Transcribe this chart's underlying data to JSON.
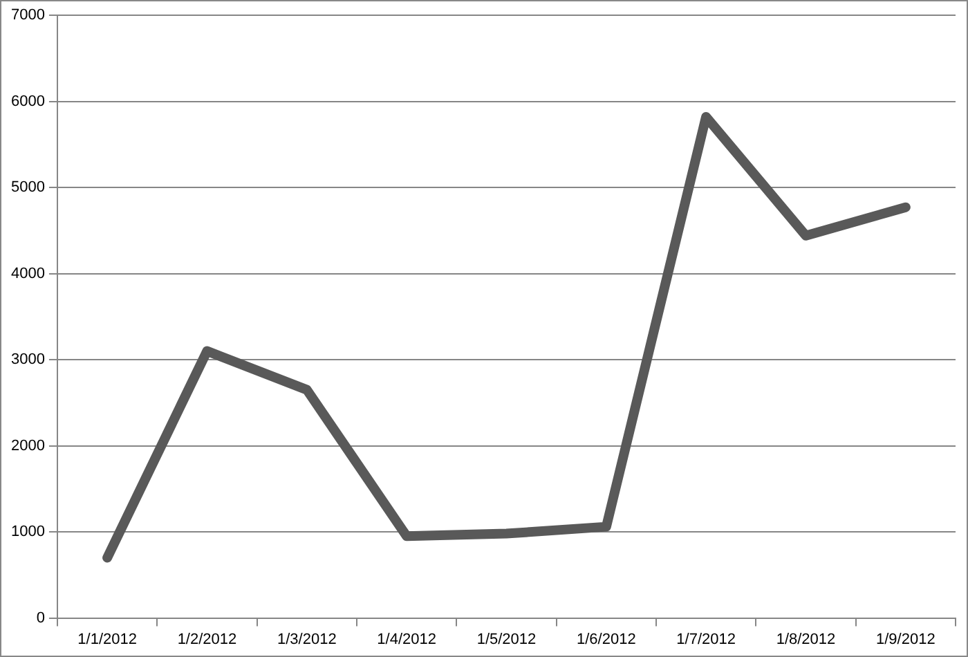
{
  "chart_data": {
    "type": "line",
    "categories": [
      "1/1/2012",
      "1/2/2012",
      "1/3/2012",
      "1/4/2012",
      "1/5/2012",
      "1/6/2012",
      "1/7/2012",
      "1/8/2012",
      "1/9/2012"
    ],
    "series": [
      {
        "color": "#595959",
        "values": [
          700,
          3100,
          2650,
          950,
          980,
          1060,
          5820,
          4440,
          4770
        ]
      }
    ],
    "ylim": [
      0,
      7000
    ],
    "yticks": [
      0,
      1000,
      2000,
      3000,
      4000,
      5000,
      6000,
      7000
    ],
    "grid": "y",
    "legend": false,
    "marker": "none",
    "line_style": "solid"
  }
}
